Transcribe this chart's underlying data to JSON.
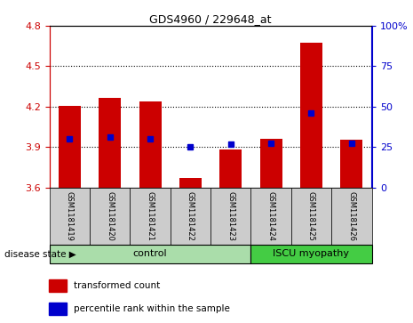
{
  "title": "GDS4960 / 229648_at",
  "samples": [
    "GSM1181419",
    "GSM1181420",
    "GSM1181421",
    "GSM1181422",
    "GSM1181423",
    "GSM1181424",
    "GSM1181425",
    "GSM1181426"
  ],
  "bar_bottom": 3.6,
  "bar_tops": [
    4.205,
    4.265,
    4.24,
    3.668,
    3.882,
    3.96,
    4.675,
    3.952
  ],
  "blue_values": [
    3.963,
    3.972,
    3.963,
    3.9,
    3.918,
    3.93,
    4.15,
    3.93
  ],
  "ylim_left": [
    3.6,
    4.8
  ],
  "ylim_right": [
    0,
    100
  ],
  "yticks_left": [
    3.6,
    3.9,
    4.2,
    4.5,
    4.8
  ],
  "yticks_right": [
    0,
    25,
    50,
    75,
    100
  ],
  "bar_color": "#cc0000",
  "blue_color": "#0000cc",
  "control_color": "#aaddaa",
  "iscu_color": "#44cc44",
  "label_color_left": "#cc0000",
  "label_color_right": "#0000cc",
  "control_label": "control",
  "iscu_label": "ISCU myopathy",
  "disease_state_label": "disease state",
  "n_control": 5,
  "n_iscu": 3,
  "legend_bar_label": "transformed count",
  "legend_blue_label": "percentile rank within the sample",
  "grid_values": [
    3.9,
    4.2,
    4.5
  ],
  "bar_width": 0.55
}
